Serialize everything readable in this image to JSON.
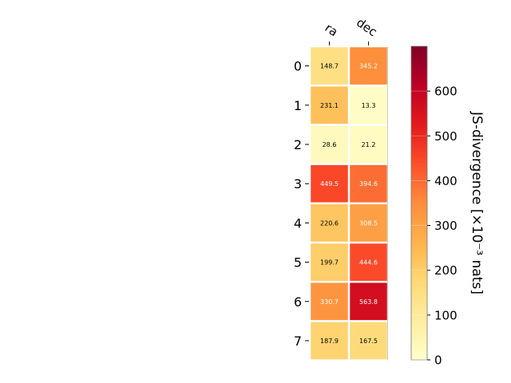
{
  "chart_data": {
    "type": "heatmap",
    "columns": [
      "ra",
      "dec"
    ],
    "rows": [
      "0",
      "1",
      "2",
      "3",
      "4",
      "5",
      "6",
      "7"
    ],
    "values": [
      [
        148.7,
        345.2
      ],
      [
        231.1,
        13.3
      ],
      [
        28.6,
        21.2
      ],
      [
        449.5,
        394.6
      ],
      [
        220.6,
        308.5
      ],
      [
        199.7,
        444.6
      ],
      [
        330.7,
        563.8
      ],
      [
        187.9,
        167.5
      ]
    ],
    "colorbar": {
      "label": "JS-divergence [×10⁻³ nats]",
      "range": [
        0,
        700
      ],
      "ticks": [
        "0",
        "100",
        "200",
        "300",
        "400",
        "500",
        "600"
      ],
      "colormap": "YlOrRd"
    }
  }
}
